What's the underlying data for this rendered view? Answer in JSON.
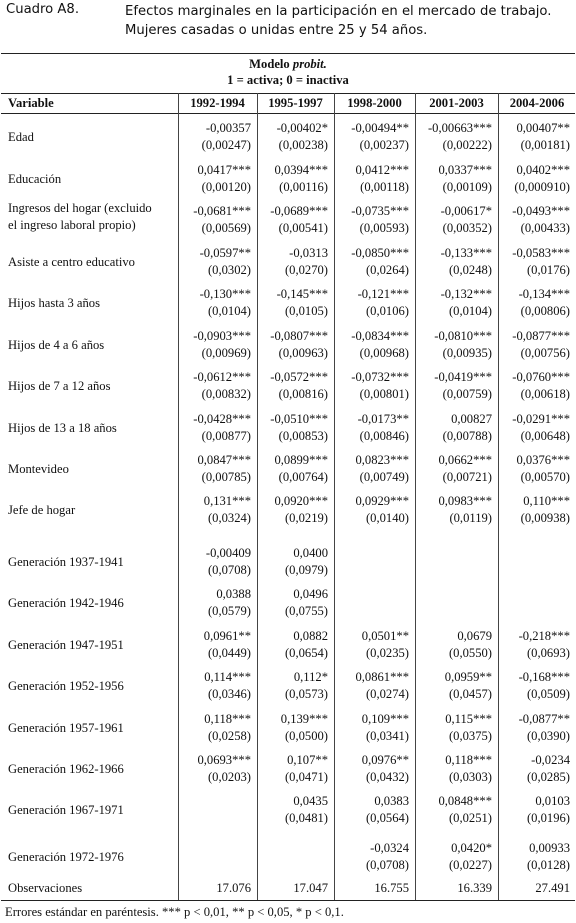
{
  "header": {
    "label": "Cuadro A8.",
    "title_line1": "Efectos marginales en la participación en el mercado de trabajo.",
    "title_line2": "Mujeres casadas o unidas entre 25 y 54 años."
  },
  "table": {
    "model_line1_prefix": "Modelo ",
    "model_line1_italic": "probit.",
    "model_line2": "1 = activa; 0 = inactiva",
    "variable_header": "Variable",
    "columns": [
      "1992-1994",
      "1995-1997",
      "1998-2000",
      "2001-2003",
      "2004-2006"
    ],
    "rows": [
      {
        "label": [
          "Edad"
        ],
        "coef": [
          "-0,00357",
          "-0,00402*",
          "-0,00494**",
          "-0,00663***",
          "0,00407**"
        ],
        "se": [
          "(0,00247)",
          "(0,00238)",
          "(0,00237)",
          "(0,00222)",
          "(0,00181)"
        ]
      },
      {
        "label": [
          "Educación"
        ],
        "coef": [
          "0,0417***",
          "0,0394***",
          "0,0412***",
          "0,0337***",
          "0,0402***"
        ],
        "se": [
          "(0,00120)",
          "(0,00116)",
          "(0,00118)",
          "(0,00109)",
          "(0,000910)"
        ]
      },
      {
        "label": [
          "Ingresos del hogar (excluido",
          "el ingreso laboral propio)"
        ],
        "coef": [
          "-0,0681***",
          "-0,0689***",
          "-0,0735***",
          "-0,00617*",
          "-0,0493***"
        ],
        "se": [
          "(0,00569)",
          "(0,00541)",
          "(0,00593)",
          "(0,00352)",
          "(0,00433)"
        ]
      },
      {
        "label": [
          "Asiste a centro educativo"
        ],
        "coef": [
          "-0,0597**",
          "-0,0313",
          "-0,0850***",
          "-0,133***",
          "-0,0583***"
        ],
        "se": [
          "(0,0302)",
          "(0,0270)",
          "(0,0264)",
          "(0,0248)",
          "(0,0176)"
        ]
      },
      {
        "label": [
          "Hijos hasta 3 años"
        ],
        "coef": [
          "-0,130***",
          "-0,145***",
          "-0,121***",
          "-0,132***",
          "-0,134***"
        ],
        "se": [
          "(0,0104)",
          "(0,0105)",
          "(0,0106)",
          "(0,0104)",
          "(0,00806)"
        ]
      },
      {
        "label": [
          "Hijos de 4 a 6 años"
        ],
        "coef": [
          "-0,0903***",
          "-0,0807***",
          "-0,0834***",
          "-0,0810***",
          "-0,0877***"
        ],
        "se": [
          "(0,00969)",
          "(0,00963)",
          "(0,00968)",
          "(0,00935)",
          "(0,00756)"
        ]
      },
      {
        "label": [
          "Hijos de 7 a 12 años"
        ],
        "coef": [
          "-0,0612***",
          "-0,0572***",
          "-0,0732***",
          "-0,0419***",
          "-0,0760***"
        ],
        "se": [
          "(0,00832)",
          "(0,00816)",
          "(0,00801)",
          "(0,00759)",
          "(0,00618)"
        ]
      },
      {
        "label": [
          "Hijos de 13 a 18 años"
        ],
        "coef": [
          "-0,0428***",
          "-0,0510***",
          "-0,0173**",
          "0,00827",
          "-0,0291***"
        ],
        "se": [
          "(0,00877)",
          "(0,00853)",
          "(0,00846)",
          "(0,00788)",
          "(0,00648)"
        ]
      },
      {
        "label": [
          "Montevideo"
        ],
        "coef": [
          "0,0847***",
          "0,0899***",
          "0,0823***",
          "0,0662***",
          "0,0376***"
        ],
        "se": [
          "(0,00785)",
          "(0,00764)",
          "(0,00749)",
          "(0,00721)",
          "(0,00570)"
        ]
      },
      {
        "label": [
          "Jefe de hogar"
        ],
        "coef": [
          "0,131***",
          "0,0920***",
          "0,0929***",
          "0,0983***",
          "0,110***"
        ],
        "se": [
          "(0,0324)",
          "(0,0219)",
          "(0,0140)",
          "(0,0119)",
          "(0,00938)"
        ]
      },
      {
        "label": [
          "Generación 1937-1941"
        ],
        "coef": [
          "-0,00409",
          "0,0400",
          "",
          "",
          ""
        ],
        "se": [
          "(0,0708)",
          "(0,0979)",
          "",
          "",
          ""
        ]
      },
      {
        "label": [
          "Generación 1942-1946"
        ],
        "coef": [
          "0,0388",
          "0,0496",
          "",
          "",
          ""
        ],
        "se": [
          "(0,0579)",
          "(0,0755)",
          "",
          "",
          ""
        ]
      },
      {
        "label": [
          "Generación 1947-1951"
        ],
        "coef": [
          "0,0961**",
          "0,0882",
          "0,0501**",
          "0,0679",
          "-0,218***"
        ],
        "se": [
          "(0,0449)",
          "(0,0654)",
          "(0,0235)",
          "(0,0550)",
          "(0,0693)"
        ]
      },
      {
        "label": [
          "Generación 1952-1956"
        ],
        "coef": [
          "0,114***",
          "0,112*",
          "0,0861***",
          "0,0959**",
          "-0,168***"
        ],
        "se": [
          "(0,0346)",
          "(0,0573)",
          "(0,0274)",
          "(0,0457)",
          "(0,0509)"
        ]
      },
      {
        "label": [
          "Generación 1957-1961"
        ],
        "coef": [
          "0,118***",
          "0,139***",
          "0,109***",
          "0,115***",
          "-0,0877**"
        ],
        "se": [
          "(0,0258)",
          "(0,0500)",
          "(0,0341)",
          "(0,0375)",
          "(0,0390)"
        ]
      },
      {
        "label": [
          "Generación 1962-1966"
        ],
        "coef": [
          "0,0693***",
          "0,107**",
          "0,0976**",
          "0,118***",
          "-0,0234"
        ],
        "se": [
          "(0,0203)",
          "(0,0471)",
          "(0,0432)",
          "(0,0303)",
          "(0,0285)"
        ]
      },
      {
        "label": [
          "Generación 1967-1971"
        ],
        "coef": [
          "",
          "0,0435",
          "0,0383",
          "0,0848***",
          "0,0103"
        ],
        "se": [
          "",
          "(0,0481)",
          "(0,0564)",
          "(0,0251)",
          "(0,0196)"
        ]
      },
      {
        "label": [
          "Generación 1972-1976"
        ],
        "coef": [
          "",
          "",
          "-0,0324",
          "0,0420*",
          "0,00933"
        ],
        "se": [
          "",
          "",
          "(0,0708)",
          "(0,0227)",
          "(0,0128)"
        ]
      }
    ],
    "observations_label": "Observaciones",
    "observations": [
      "17.076",
      "17.047",
      "16.755",
      "16.339",
      "27.491"
    ]
  },
  "footnote": "Errores estándar en paréntesis. *** p < 0,01, ** p < 0,05, * p < 0,1."
}
